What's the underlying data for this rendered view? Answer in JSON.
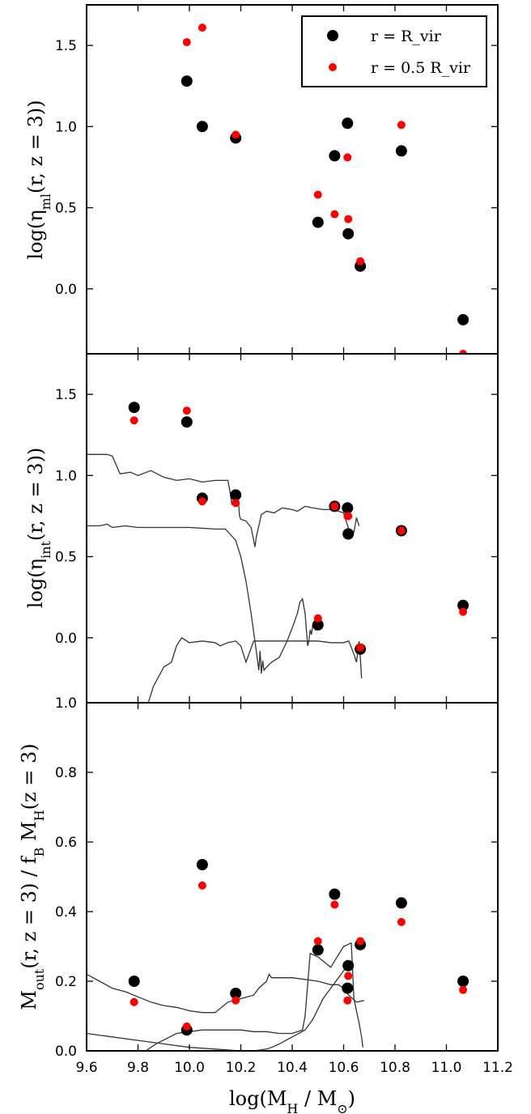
{
  "chart_data": [
    {
      "type": "scatter",
      "ylabel": "log(η_ml(r, z = 3))",
      "xlim": [
        9.6,
        11.2
      ],
      "ylim": [
        -0.4,
        1.75
      ],
      "yticks": [
        "0.0",
        "0.5",
        "1.0",
        "1.5"
      ],
      "legend": {
        "placement": "top-right",
        "entries": [
          "r = R_vir",
          "r = 0.5 R_vir"
        ]
      },
      "series": [
        {
          "name": "r = R_vir",
          "color": "#000000",
          "x": [
            9.99,
            10.05,
            10.18,
            10.5,
            10.565,
            10.615,
            10.618,
            10.665,
            10.825,
            11.065
          ],
          "y": [
            1.28,
            1.0,
            0.93,
            0.41,
            0.82,
            1.02,
            0.34,
            0.14,
            0.85,
            -0.19
          ]
        },
        {
          "name": "r = 0.5 R_vir",
          "color": "#ff0000",
          "x": [
            9.99,
            10.05,
            10.18,
            10.5,
            10.565,
            10.615,
            10.618,
            10.665,
            10.825,
            11.065
          ],
          "y": [
            1.52,
            1.61,
            0.95,
            0.58,
            0.46,
            0.81,
            0.43,
            0.17,
            1.01,
            -0.4
          ]
        }
      ]
    },
    {
      "type": "scatter",
      "ylabel": "log(η_int(r, z = 3))",
      "xlim": [
        9.6,
        11.2
      ],
      "ylim": [
        -0.4,
        1.75
      ],
      "yticks": [
        "0.0",
        "0.5",
        "1.0",
        "1.5"
      ],
      "series": [
        {
          "color": "#000000",
          "x": [
            9.785,
            9.99,
            10.05,
            10.18,
            10.5,
            10.565,
            10.615,
            10.618,
            10.665,
            10.825,
            11.065
          ],
          "y": [
            1.42,
            1.33,
            0.86,
            0.88,
            0.08,
            0.81,
            0.8,
            0.64,
            -0.07,
            0.66,
            0.2
          ]
        },
        {
          "color": "#ff0000",
          "x": [
            9.785,
            9.99,
            10.05,
            10.18,
            10.5,
            10.565,
            10.615,
            10.618,
            10.665,
            10.825,
            11.065
          ],
          "y": [
            1.34,
            1.4,
            0.84,
            0.83,
            0.12,
            0.81,
            0.75,
            0.75,
            -0.06,
            0.66,
            0.16
          ]
        }
      ],
      "curves": [
        {
          "x": [
            9.6,
            9.68,
            9.7,
            9.73,
            9.77,
            9.8,
            9.85,
            9.9,
            9.95,
            10.0,
            10.05,
            10.1,
            10.15,
            10.16,
            10.165,
            10.18,
            10.19,
            10.195,
            10.2,
            10.22,
            10.24,
            10.255,
            10.26,
            10.28,
            10.3,
            10.33,
            10.36,
            10.4,
            10.42,
            10.45,
            10.48,
            10.52,
            10.56,
            10.6,
            10.62,
            10.64,
            10.65,
            10.66
          ],
          "y": [
            1.13,
            1.13,
            1.12,
            1.01,
            1.02,
            1.0,
            1.03,
            0.99,
            0.97,
            0.98,
            0.96,
            0.97,
            0.97,
            0.88,
            0.82,
            0.9,
            0.86,
            0.75,
            0.73,
            0.72,
            0.68,
            0.56,
            0.62,
            0.76,
            0.78,
            0.77,
            0.8,
            0.79,
            0.78,
            0.81,
            0.8,
            0.79,
            0.79,
            0.77,
            0.67,
            0.65,
            0.74,
            0.69
          ]
        },
        {
          "x": [
            9.6,
            9.65,
            9.68,
            9.7,
            9.75,
            9.8,
            9.9,
            10.0,
            10.1,
            10.14,
            10.18,
            10.2,
            10.22,
            10.24,
            10.26,
            10.27,
            10.275,
            10.28,
            10.285,
            10.29,
            10.3,
            10.32,
            10.35,
            10.38,
            10.4,
            10.42,
            10.43,
            10.44,
            10.45,
            10.46,
            10.465,
            10.47,
            10.475,
            10.48,
            10.49,
            10.5
          ],
          "y": [
            0.69,
            0.69,
            0.7,
            0.68,
            0.69,
            0.68,
            0.68,
            0.68,
            0.67,
            0.67,
            0.6,
            0.5,
            0.35,
            0.15,
            -0.08,
            -0.2,
            -0.08,
            -0.22,
            -0.14,
            -0.2,
            -0.18,
            -0.15,
            -0.12,
            -0.02,
            0.06,
            0.15,
            0.22,
            0.24,
            0.15,
            -0.05,
            -0.02,
            0.05,
            0.02,
            0.08,
            0.05,
            0.08
          ]
        },
        {
          "x": [
            9.84,
            9.86,
            9.9,
            9.93,
            9.95,
            9.97,
            10.0,
            10.05,
            10.1,
            10.12,
            10.15,
            10.18,
            10.2,
            10.22,
            10.25,
            10.3,
            10.35,
            10.4,
            10.45,
            10.5,
            10.55,
            10.6,
            10.62,
            10.64,
            10.65,
            10.66,
            10.665,
            10.67
          ],
          "y": [
            -0.4,
            -0.3,
            -0.18,
            -0.15,
            -0.05,
            0.0,
            -0.03,
            -0.02,
            -0.03,
            -0.05,
            -0.03,
            -0.02,
            -0.05,
            -0.15,
            -0.02,
            -0.02,
            -0.02,
            -0.02,
            -0.02,
            -0.02,
            -0.03,
            -0.03,
            -0.02,
            -0.1,
            -0.15,
            -0.02,
            -0.12,
            -0.25
          ]
        }
      ]
    },
    {
      "type": "scatter",
      "ylabel": "M_out(r, z = 3) / f_B M_H(z = 3)",
      "xlabel": "log(M_H / M_⊙)",
      "xlim": [
        9.6,
        11.2
      ],
      "ylim": [
        0.0,
        1.0
      ],
      "yticks": [
        "0.0",
        "0.2",
        "0.4",
        "0.6",
        "0.8",
        "1.0"
      ],
      "xticks": [
        "9.6",
        "9.8",
        "10.0",
        "10.2",
        "10.4",
        "10.6",
        "10.8",
        "11.0",
        "11.2"
      ],
      "series": [
        {
          "color": "#000000",
          "x": [
            9.785,
            9.99,
            10.05,
            10.18,
            10.5,
            10.565,
            10.615,
            10.618,
            10.665,
            10.825,
            11.065
          ],
          "y": [
            0.2,
            0.06,
            0.535,
            0.165,
            0.29,
            0.45,
            0.18,
            0.245,
            0.305,
            0.425,
            0.2
          ]
        },
        {
          "color": "#ff0000",
          "x": [
            9.785,
            9.99,
            10.05,
            10.18,
            10.5,
            10.565,
            10.615,
            10.618,
            10.665,
            10.825,
            11.065
          ],
          "y": [
            0.14,
            0.07,
            0.475,
            0.145,
            0.315,
            0.42,
            0.145,
            0.215,
            0.315,
            0.37,
            0.175
          ]
        }
      ],
      "curves": [
        {
          "x": [
            9.6,
            9.65,
            9.7,
            9.75,
            9.8,
            9.85,
            9.9,
            9.95,
            10.0,
            10.05,
            10.1,
            10.15,
            10.2,
            10.25,
            10.27,
            10.3,
            10.31,
            10.32,
            10.35,
            10.4,
            10.45,
            10.5,
            10.55,
            10.58,
            10.6,
            10.62,
            10.65,
            10.68
          ],
          "y": [
            0.22,
            0.2,
            0.18,
            0.17,
            0.155,
            0.14,
            0.13,
            0.125,
            0.115,
            0.11,
            0.11,
            0.14,
            0.15,
            0.16,
            0.18,
            0.2,
            0.22,
            0.21,
            0.21,
            0.21,
            0.205,
            0.2,
            0.19,
            0.19,
            0.18,
            0.16,
            0.14,
            0.145
          ]
        },
        {
          "x": [
            9.6,
            9.7,
            9.8,
            9.9,
            10.0,
            10.1,
            10.2,
            10.25,
            10.3,
            10.32,
            10.35,
            10.4,
            10.45,
            10.48,
            10.5,
            10.52,
            10.55,
            10.58,
            10.6,
            10.62
          ],
          "y": [
            0.05,
            0.04,
            0.03,
            0.02,
            0.01,
            0.005,
            0.0,
            0.0,
            0.005,
            0.01,
            0.02,
            0.04,
            0.06,
            0.09,
            0.12,
            0.15,
            0.18,
            0.21,
            0.23,
            0.25
          ]
        },
        {
          "x": [
            9.83,
            9.87,
            9.95,
            10.05,
            10.15,
            10.2,
            10.25,
            10.3,
            10.35,
            10.4,
            10.44,
            10.45,
            10.47,
            10.5,
            10.55,
            10.6,
            10.63,
            10.64,
            10.66,
            10.67,
            10.675
          ],
          "y": [
            0.0,
            0.02,
            0.05,
            0.06,
            0.06,
            0.06,
            0.055,
            0.055,
            0.05,
            0.05,
            0.06,
            0.1,
            0.28,
            0.27,
            0.24,
            0.3,
            0.31,
            0.15,
            0.08,
            0.04,
            0.01
          ]
        }
      ]
    }
  ]
}
